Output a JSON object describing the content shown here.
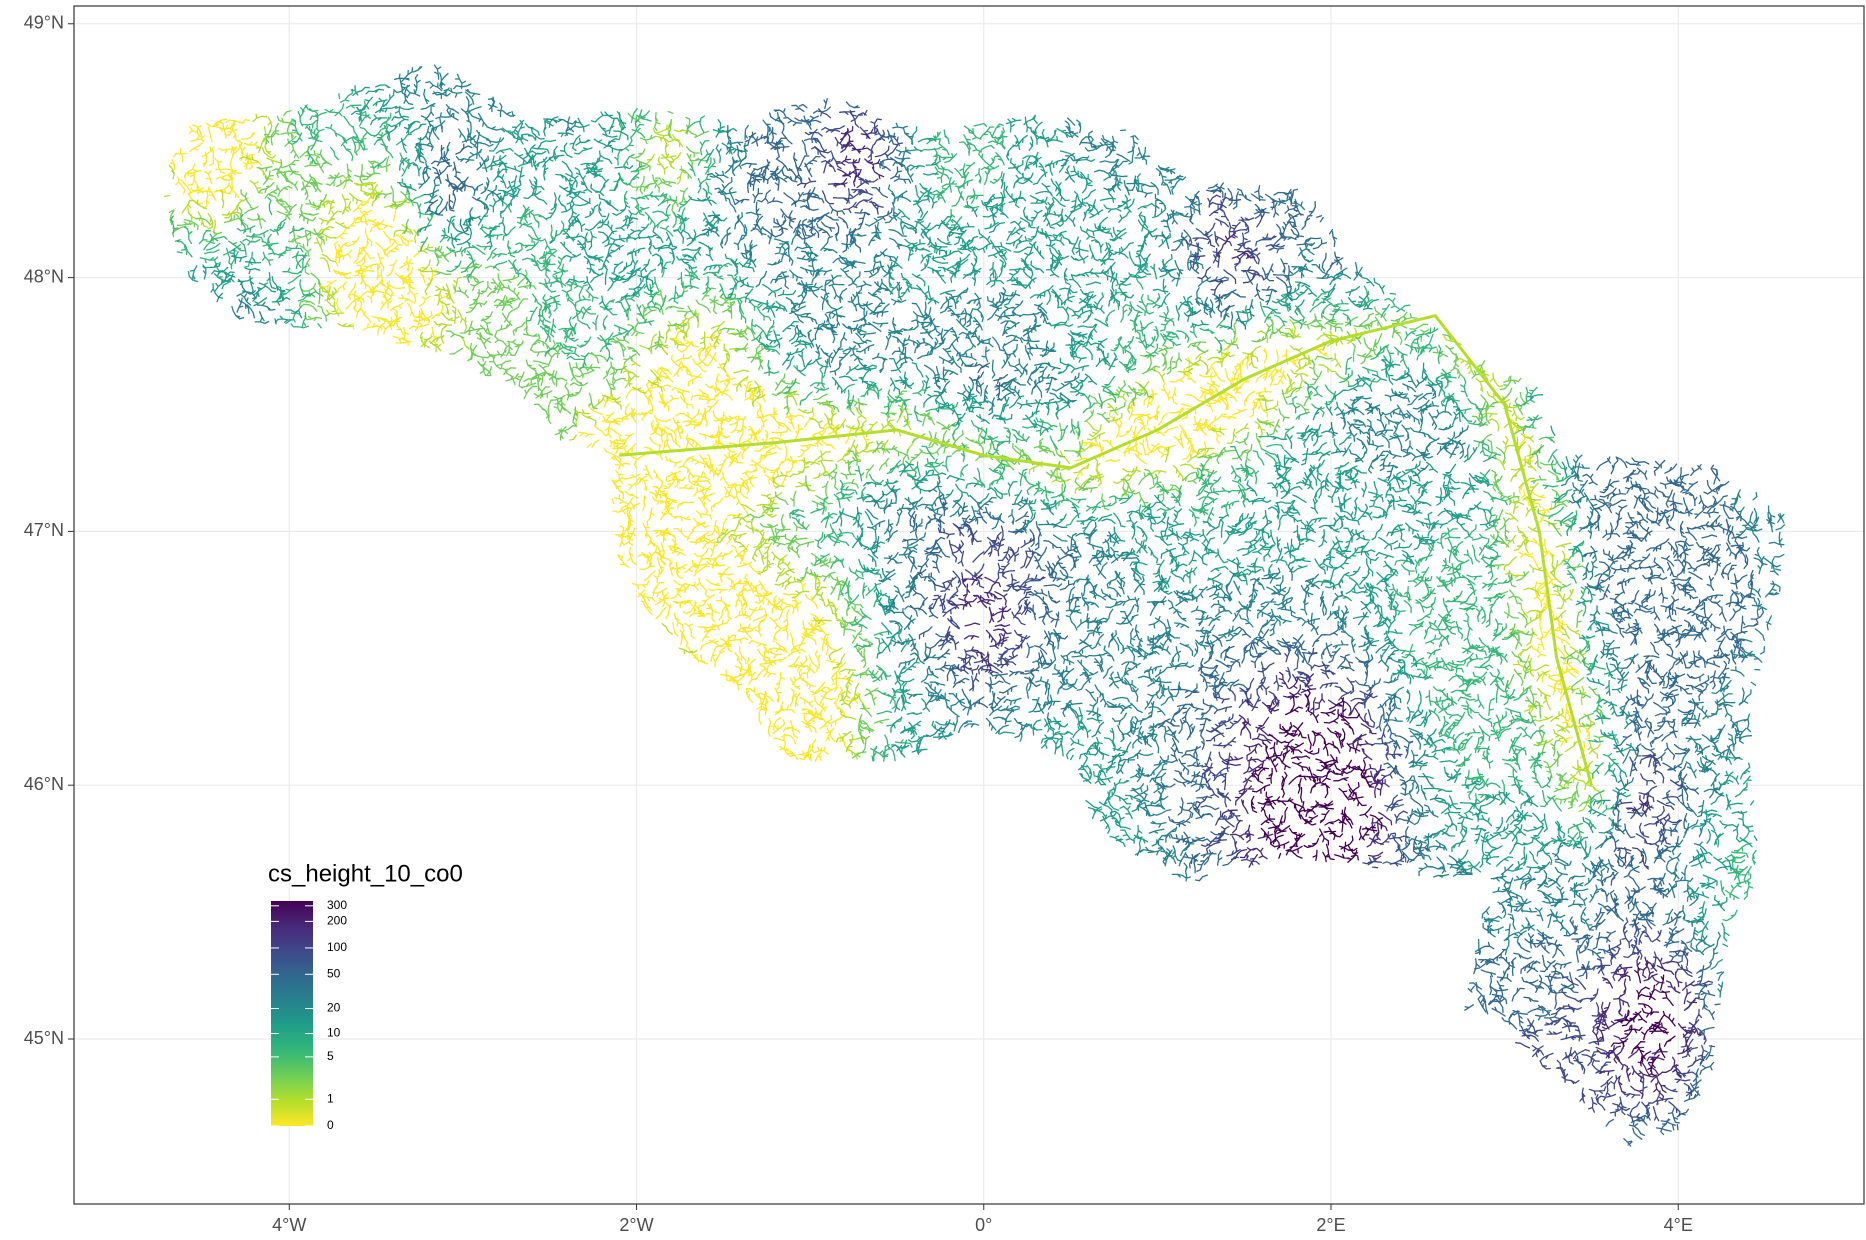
{
  "chart_data": {
    "type": "map",
    "xlim": [
      -5.24,
      5.07
    ],
    "ylim": [
      44.35,
      49.07
    ],
    "xticks": [
      {
        "value": -4,
        "label": "4°W"
      },
      {
        "value": -2,
        "label": "2°W"
      },
      {
        "value": 0,
        "label": "0°"
      },
      {
        "value": 2,
        "label": "2°E"
      },
      {
        "value": 4,
        "label": "4°E"
      }
    ],
    "yticks": [
      {
        "value": 45,
        "label": "45°N"
      },
      {
        "value": 46,
        "label": "46°N"
      },
      {
        "value": 47,
        "label": "47°N"
      },
      {
        "value": 48,
        "label": "48°N"
      },
      {
        "value": 49,
        "label": "49°N"
      }
    ],
    "grid": true,
    "legend": {
      "title": "cs_height_10_co0",
      "position": "bottom-left",
      "scale": "log1p",
      "colormap": "viridis",
      "limits": [
        0,
        340
      ],
      "ticks": [
        0,
        1,
        5,
        10,
        20,
        50,
        100,
        200,
        300
      ]
    }
  }
}
